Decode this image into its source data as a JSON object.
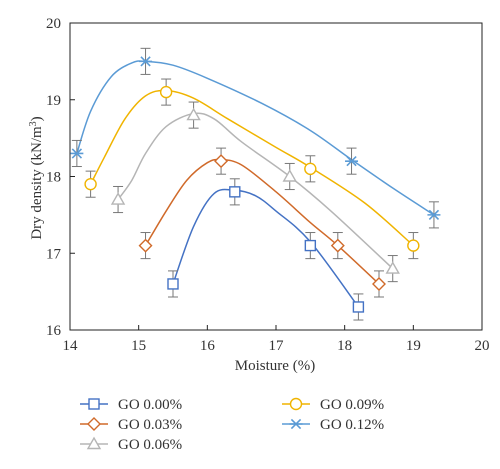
{
  "chart_data": {
    "type": "line",
    "xlabel": "Moisture (%)",
    "ylabel_main": "Dry density (kN/m",
    "ylabel_sup": "3",
    "ylabel_end": ")",
    "xlim": [
      14,
      20
    ],
    "ylim": [
      16,
      20
    ],
    "x_ticks": [
      14,
      15,
      16,
      17,
      18,
      19,
      20
    ],
    "y_ticks": [
      16,
      17,
      18,
      19,
      20
    ],
    "grid": false,
    "legend_position": "bottom",
    "series": [
      {
        "name": "GO 0.00%",
        "color": "#4472c4",
        "marker": "square",
        "x": [
          15.5,
          16.4,
          17.5,
          18.2
        ],
        "y": [
          16.6,
          17.8,
          17.1,
          16.3
        ],
        "curve_x": [
          15.5,
          15.8,
          16.1,
          16.4,
          16.7,
          17.0,
          17.5,
          18.2
        ],
        "curve_y": [
          16.6,
          17.35,
          17.78,
          17.82,
          17.75,
          17.55,
          17.15,
          16.3
        ]
      },
      {
        "name": "GO 0.03%",
        "color": "#d06a2a",
        "marker": "diamond",
        "x": [
          15.1,
          16.2,
          17.9,
          18.5
        ],
        "y": [
          17.1,
          18.2,
          17.1,
          16.6
        ],
        "curve_x": [
          15.1,
          15.4,
          15.7,
          16.0,
          16.2,
          16.5,
          17.0,
          17.5,
          17.9,
          18.5
        ],
        "curve_y": [
          17.1,
          17.55,
          17.95,
          18.18,
          18.22,
          18.15,
          17.8,
          17.4,
          17.1,
          16.6
        ]
      },
      {
        "name": "GO 0.06%",
        "color": "#b5b5b5",
        "marker": "triangle",
        "x": [
          14.7,
          15.8,
          17.2,
          18.7
        ],
        "y": [
          17.7,
          18.8,
          18.0,
          16.8
        ],
        "curve_x": [
          14.7,
          14.9,
          15.1,
          15.4,
          15.8,
          16.1,
          16.5,
          17.2,
          17.8,
          18.7
        ],
        "curve_y": [
          17.7,
          17.95,
          18.3,
          18.65,
          18.82,
          18.75,
          18.45,
          18.0,
          17.55,
          16.8
        ]
      },
      {
        "name": "GO 0.09%",
        "color": "#f0b400",
        "marker": "circle",
        "x": [
          14.3,
          15.4,
          17.5,
          19.0
        ],
        "y": [
          17.9,
          19.1,
          18.1,
          17.1
        ],
        "curve_x": [
          14.3,
          14.5,
          14.8,
          15.1,
          15.4,
          15.8,
          16.3,
          17.0,
          17.5,
          18.3,
          19.0
        ],
        "curve_y": [
          17.9,
          18.25,
          18.75,
          19.05,
          19.12,
          19.02,
          18.75,
          18.38,
          18.12,
          17.65,
          17.1
        ]
      },
      {
        "name": "GO 0.12%",
        "color": "#5b9bd5",
        "marker": "star",
        "x": [
          14.1,
          15.1,
          18.1,
          19.3
        ],
        "y": [
          18.3,
          19.5,
          18.2,
          17.5
        ],
        "curve_x": [
          14.1,
          14.3,
          14.6,
          14.9,
          15.1,
          15.5,
          16.0,
          16.8,
          17.5,
          18.1,
          18.7,
          19.3
        ],
        "curve_y": [
          18.3,
          18.85,
          19.3,
          19.48,
          19.5,
          19.45,
          19.28,
          18.95,
          18.6,
          18.22,
          17.85,
          17.5
        ]
      }
    ],
    "error_bar": 0.17
  }
}
